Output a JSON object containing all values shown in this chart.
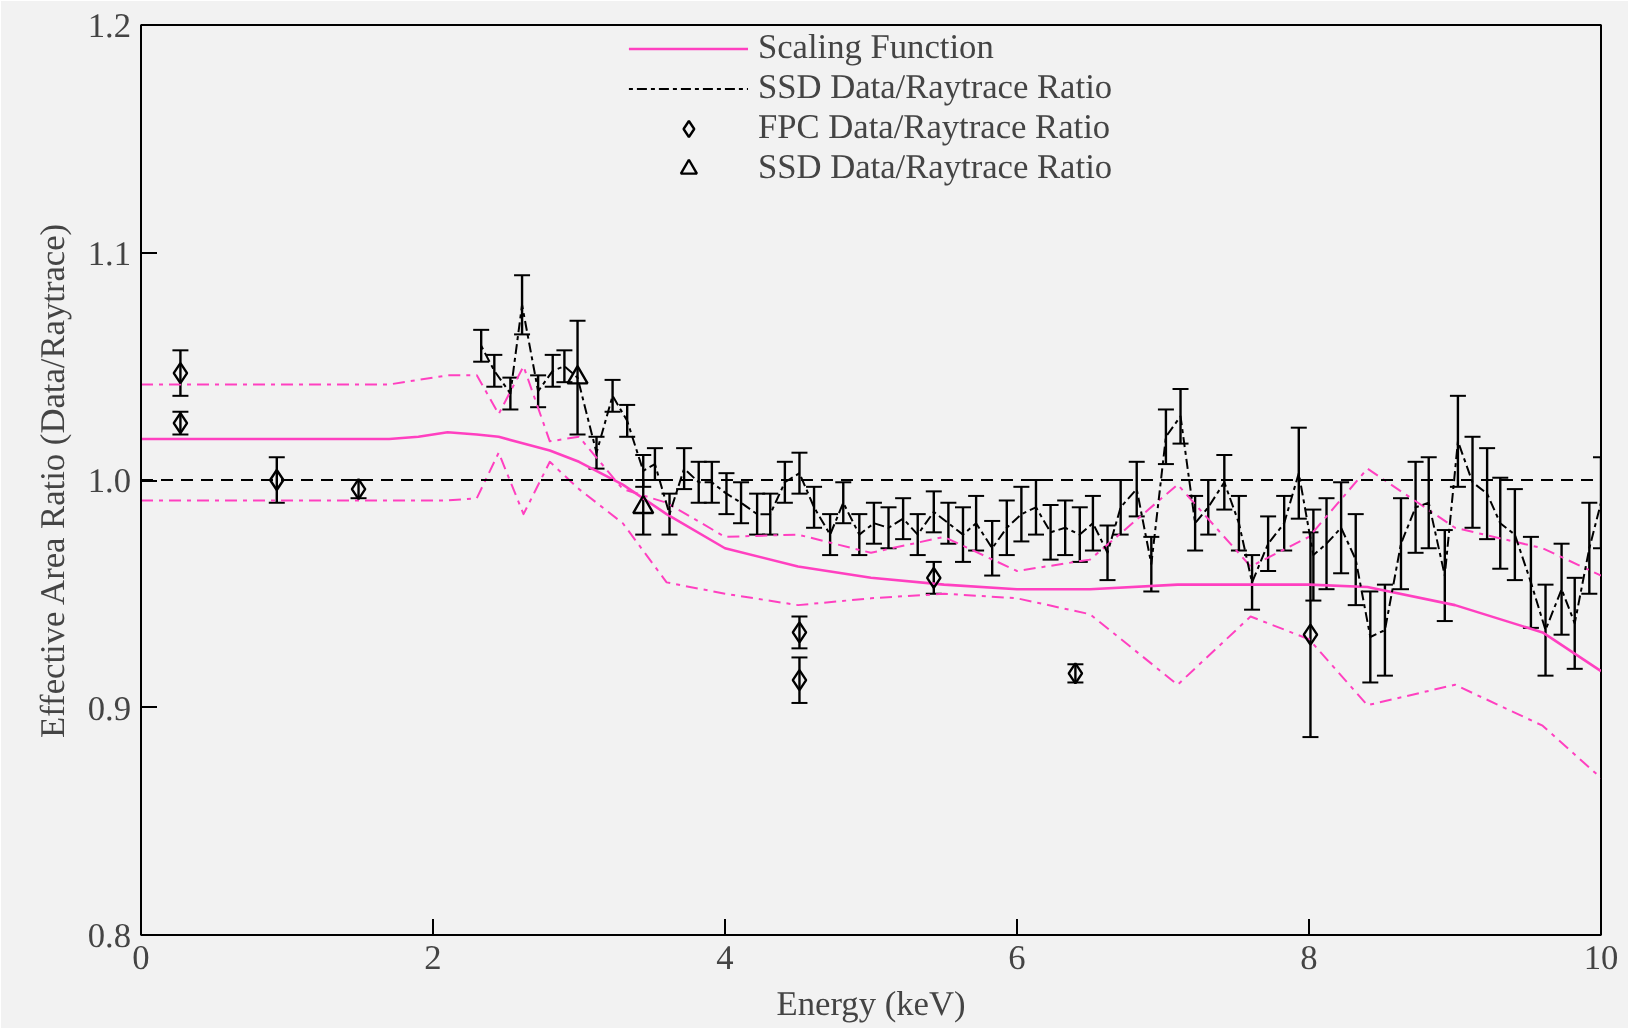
{
  "chart_data": {
    "type": "line",
    "xlabel": "Energy (keV)",
    "ylabel": "Effective Area Ratio (Data/Raytrace)",
    "xlim": [
      0,
      10
    ],
    "ylim": [
      0.8,
      1.2
    ],
    "xticks": [
      0,
      2,
      4,
      6,
      8,
      10
    ],
    "yticks": [
      {
        "value": 0.8,
        "label": "0.8"
      },
      {
        "value": 0.9,
        "label": "0.9"
      },
      {
        "value": 1.0,
        "label": "1.0"
      },
      {
        "value": 1.1,
        "label": "1.1"
      },
      {
        "value": 1.2,
        "label": "1.2"
      }
    ],
    "grid": false,
    "legend": "top",
    "ref_lines": [
      {
        "axis": "y",
        "value": 1.0,
        "color": "#000000",
        "line_style": "dashed"
      }
    ],
    "series": [
      {
        "color": "#ff40c0",
        "line_style": "dotted",
        "marker": "none",
        "x": [
          0,
          0.5,
          1,
          1.5,
          1.7,
          1.9,
          2.1,
          2.3,
          2.45,
          2.62,
          2.8,
          3.0,
          3.3,
          3.6,
          4.0,
          4.5,
          5.0,
          5.5,
          6.0,
          6.5,
          7.1,
          7.6,
          8.0,
          8.4,
          9.0,
          9.6,
          10
        ],
        "values": [
          1.042,
          1.042,
          1.042,
          1.042,
          1.042,
          1.044,
          1.046,
          1.046,
          1.029,
          1.05,
          1.017,
          1.019,
          0.996,
          0.99,
          0.975,
          0.976,
          0.968,
          0.975,
          0.96,
          0.965,
          0.998,
          0.962,
          0.975,
          1.005,
          0.979,
          0.97,
          0.958
        ]
      },
      {
        "color": "#ff40c0",
        "line_style": "dotted",
        "marker": "none",
        "x": [
          0,
          0.5,
          1,
          1.5,
          1.7,
          1.9,
          2.1,
          2.3,
          2.45,
          2.62,
          2.8,
          3.0,
          3.3,
          3.6,
          4.0,
          4.5,
          5.0,
          5.5,
          6.0,
          6.5,
          7.1,
          7.6,
          8.0,
          8.4,
          9.0,
          9.6,
          10
        ],
        "values": [
          0.991,
          0.991,
          0.991,
          0.991,
          0.991,
          0.991,
          0.991,
          0.992,
          1.012,
          0.985,
          1.008,
          0.996,
          0.981,
          0.955,
          0.95,
          0.945,
          0.948,
          0.95,
          0.948,
          0.941,
          0.91,
          0.94,
          0.93,
          0.901,
          0.91,
          0.892,
          0.869
        ]
      },
      {
        "name": "Scaling Function",
        "color": "#ff40c0",
        "line_style": "solid",
        "marker": "none",
        "x": [
          0,
          0.5,
          1,
          1.5,
          1.7,
          1.9,
          2.1,
          2.3,
          2.45,
          2.62,
          2.8,
          3.0,
          3.3,
          3.6,
          4.0,
          4.5,
          5.0,
          5.5,
          6.0,
          6.5,
          7.1,
          7.6,
          8.0,
          8.4,
          9.0,
          9.6,
          10
        ],
        "values": [
          1.018,
          1.018,
          1.018,
          1.018,
          1.018,
          1.019,
          1.021,
          1.02,
          1.019,
          1.016,
          1.013,
          1.008,
          0.998,
          0.985,
          0.97,
          0.962,
          0.957,
          0.954,
          0.952,
          0.952,
          0.954,
          0.954,
          0.954,
          0.953,
          0.945,
          0.933,
          0.916
        ]
      },
      {
        "name": "SSD Data/Raytrace Ratio",
        "color": "#000000",
        "line_style": "dashed",
        "marker": "none",
        "x": [
          2.33,
          2.42,
          2.53,
          2.61,
          2.72,
          2.82,
          2.9,
          2.99,
          3.12,
          3.23,
          3.33,
          3.44,
          3.52,
          3.62,
          3.72,
          3.82,
          3.91,
          4.01,
          4.11,
          4.22,
          4.31,
          4.41,
          4.51,
          4.61,
          4.72,
          4.81,
          4.92,
          5.02,
          5.12,
          5.22,
          5.32,
          5.43,
          5.53,
          5.63,
          5.72,
          5.83,
          5.93,
          6.03,
          6.13,
          6.23,
          6.33,
          6.43,
          6.52,
          6.62,
          6.71,
          6.82,
          6.92,
          7.02,
          7.12,
          7.22,
          7.31,
          7.42,
          7.52,
          7.61,
          7.72,
          7.83,
          7.93,
          8.03,
          8.12,
          8.22,
          8.32,
          8.42,
          8.52,
          8.63,
          8.73,
          8.82,
          8.93,
          9.02,
          9.12,
          9.22,
          9.31,
          9.41,
          9.52,
          9.62,
          9.73,
          9.82,
          9.92,
          10.0
        ],
        "values": [
          1.059,
          1.048,
          1.038,
          1.077,
          1.039,
          1.048,
          1.05,
          1.045,
          1.012,
          1.037,
          1.026,
          1.004,
          1.007,
          0.985,
          1.005,
          0.999,
          0.999,
          0.994,
          0.99,
          0.985,
          0.985,
          0.999,
          1.003,
          0.988,
          0.976,
          0.99,
          0.976,
          0.981,
          0.979,
          0.983,
          0.976,
          0.986,
          0.981,
          0.976,
          0.981,
          0.97,
          0.979,
          0.985,
          0.988,
          0.977,
          0.979,
          0.976,
          0.981,
          0.968,
          0.988,
          0.996,
          0.963,
          1.019,
          1.028,
          0.981,
          0.988,
          0.999,
          0.981,
          0.955,
          0.972,
          0.981,
          1.003,
          0.967,
          0.972,
          0.979,
          0.965,
          0.931,
          0.934,
          0.972,
          0.988,
          0.99,
          0.958,
          1.017,
          0.999,
          0.994,
          0.981,
          0.976,
          0.955,
          0.934,
          0.952,
          0.937,
          0.97,
          0.99
        ],
        "errors": [
          0.007,
          0.007,
          0.007,
          0.013,
          0.007,
          0.007,
          0.007,
          null,
          0.007,
          0.007,
          0.007,
          0.007,
          0.007,
          0.009,
          0.009,
          0.009,
          0.009,
          0.009,
          0.009,
          0.009,
          0.009,
          0.009,
          0.009,
          0.009,
          0.009,
          0.009,
          0.009,
          0.009,
          0.009,
          0.009,
          0.009,
          0.009,
          0.009,
          0.012,
          0.012,
          0.012,
          0.012,
          0.012,
          0.012,
          0.012,
          0.012,
          0.012,
          0.012,
          0.012,
          0.012,
          0.012,
          0.012,
          0.012,
          0.012,
          0.012,
          0.012,
          0.012,
          0.012,
          0.012,
          0.012,
          0.012,
          0.02,
          0.02,
          0.02,
          0.02,
          0.02,
          0.02,
          0.02,
          0.02,
          0.02,
          0.02,
          0.02,
          0.02,
          0.02,
          0.02,
          0.02,
          0.02,
          0.02,
          0.02,
          0.02,
          0.02,
          0.02,
          0.02
        ]
      },
      {
        "name": "FPC Data/Raytrace Ratio",
        "type": "scatter",
        "color": "#000000",
        "marker": "diamond",
        "x": [
          0.27,
          0.27,
          0.93,
          1.49,
          4.51,
          4.51,
          5.43,
          6.4,
          8.01
        ],
        "values": [
          1.047,
          1.025,
          1.0,
          0.996,
          0.933,
          0.912,
          0.957,
          0.915,
          0.932
        ],
        "errors": [
          0.01,
          0.005,
          0.01,
          0.004,
          0.007,
          0.01,
          0.007,
          0.004,
          0.045
        ]
      },
      {
        "name": "SSD Data/Raytrace Ratio",
        "type": "scatter",
        "color": "#000000",
        "marker": "triangle",
        "x": [
          2.99,
          3.44
        ],
        "values": [
          1.045,
          0.988
        ],
        "errors": [
          0.025,
          0.012
        ]
      }
    ]
  }
}
